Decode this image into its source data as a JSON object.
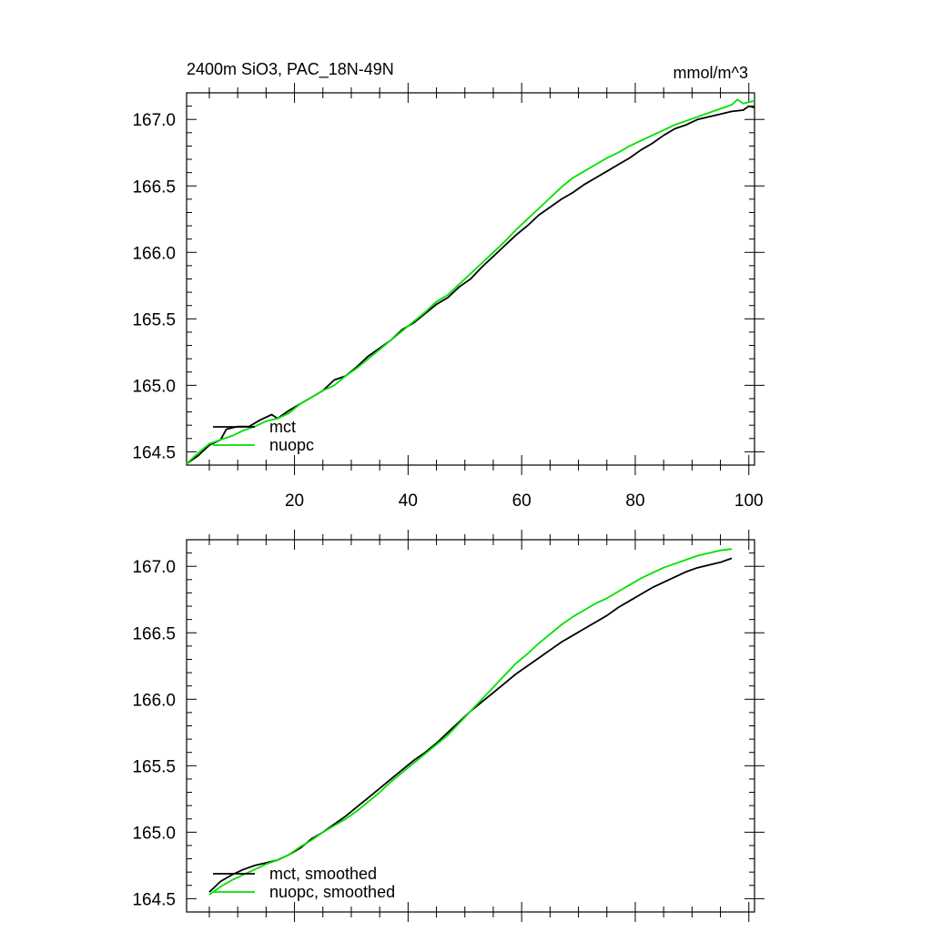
{
  "chart_data": [
    {
      "type": "line",
      "title": "2400m SiO3, PAC_18N-49N",
      "units": "mmol/m^3",
      "xlabel": "",
      "ylabel": "",
      "xlim": [
        1,
        101
      ],
      "ylim": [
        164.4,
        167.2
      ],
      "xticks": [
        20,
        40,
        60,
        80,
        100
      ],
      "xtick_labels": [
        "20",
        "40",
        "60",
        "80",
        "100"
      ],
      "yticks": [
        164.5,
        165.0,
        165.5,
        166.0,
        166.5,
        167.0
      ],
      "ytick_labels": [
        "164.5",
        "165.0",
        "165.5",
        "166.0",
        "166.5",
        "167.0"
      ],
      "grid": false,
      "legend": "bottom-left",
      "series": [
        {
          "name": "mct",
          "color": "#000000",
          "points": [
            [
              1,
              164.41
            ],
            [
              3,
              164.47
            ],
            [
              5,
              164.55
            ],
            [
              7,
              164.59
            ],
            [
              8,
              164.67
            ],
            [
              10,
              164.69
            ],
            [
              12,
              164.69
            ],
            [
              14,
              164.74
            ],
            [
              16,
              164.78
            ],
            [
              17,
              164.75
            ],
            [
              19,
              164.81
            ],
            [
              21,
              164.86
            ],
            [
              23,
              164.91
            ],
            [
              25,
              164.96
            ],
            [
              27,
              165.04
            ],
            [
              29,
              165.07
            ],
            [
              31,
              165.14
            ],
            [
              33,
              165.22
            ],
            [
              35,
              165.28
            ],
            [
              37,
              165.34
            ],
            [
              39,
              165.42
            ],
            [
              41,
              165.47
            ],
            [
              43,
              165.54
            ],
            [
              45,
              165.61
            ],
            [
              47,
              165.66
            ],
            [
              49,
              165.74
            ],
            [
              51,
              165.8
            ],
            [
              53,
              165.89
            ],
            [
              55,
              165.97
            ],
            [
              57,
              166.05
            ],
            [
              59,
              166.13
            ],
            [
              61,
              166.2
            ],
            [
              63,
              166.28
            ],
            [
              65,
              166.34
            ],
            [
              67,
              166.4
            ],
            [
              69,
              166.45
            ],
            [
              71,
              166.51
            ],
            [
              73,
              166.56
            ],
            [
              75,
              166.61
            ],
            [
              77,
              166.66
            ],
            [
              79,
              166.71
            ],
            [
              81,
              166.77
            ],
            [
              83,
              166.82
            ],
            [
              85,
              166.88
            ],
            [
              87,
              166.93
            ],
            [
              89,
              166.96
            ],
            [
              91,
              167.0
            ],
            [
              93,
              167.02
            ],
            [
              95,
              167.04
            ],
            [
              97,
              167.06
            ],
            [
              99,
              167.07
            ],
            [
              100,
              167.1
            ],
            [
              101,
              167.09
            ]
          ]
        },
        {
          "name": "nuopc",
          "color": "#00e000",
          "points": [
            [
              1,
              164.41
            ],
            [
              3,
              164.49
            ],
            [
              5,
              164.56
            ],
            [
              7,
              164.59
            ],
            [
              9,
              164.62
            ],
            [
              11,
              164.66
            ],
            [
              13,
              164.69
            ],
            [
              15,
              164.73
            ],
            [
              17,
              164.75
            ],
            [
              19,
              164.79
            ],
            [
              21,
              164.86
            ],
            [
              23,
              164.91
            ],
            [
              25,
              164.96
            ],
            [
              27,
              165.0
            ],
            [
              29,
              165.07
            ],
            [
              31,
              165.13
            ],
            [
              33,
              165.2
            ],
            [
              35,
              165.27
            ],
            [
              37,
              165.34
            ],
            [
              39,
              165.41
            ],
            [
              41,
              165.48
            ],
            [
              43,
              165.55
            ],
            [
              45,
              165.63
            ],
            [
              47,
              165.68
            ],
            [
              49,
              165.76
            ],
            [
              51,
              165.84
            ],
            [
              53,
              165.92
            ],
            [
              55,
              166.0
            ],
            [
              57,
              166.08
            ],
            [
              59,
              166.17
            ],
            [
              61,
              166.25
            ],
            [
              63,
              166.33
            ],
            [
              65,
              166.41
            ],
            [
              67,
              166.49
            ],
            [
              69,
              166.56
            ],
            [
              71,
              166.61
            ],
            [
              73,
              166.66
            ],
            [
              75,
              166.71
            ],
            [
              77,
              166.75
            ],
            [
              79,
              166.8
            ],
            [
              81,
              166.84
            ],
            [
              83,
              166.88
            ],
            [
              85,
              166.92
            ],
            [
              87,
              166.96
            ],
            [
              89,
              166.99
            ],
            [
              91,
              167.02
            ],
            [
              93,
              167.05
            ],
            [
              95,
              167.08
            ],
            [
              97,
              167.11
            ],
            [
              98,
              167.15
            ],
            [
              99,
              167.12
            ],
            [
              101,
              167.14
            ]
          ]
        }
      ]
    },
    {
      "type": "line",
      "title": "",
      "xlabel": "",
      "ylabel": "",
      "xlim": [
        1,
        101
      ],
      "ylim": [
        164.4,
        167.2
      ],
      "xticks": [
        20,
        40,
        60,
        80,
        100
      ],
      "xtick_labels": [],
      "yticks": [
        164.5,
        165.0,
        165.5,
        166.0,
        166.5,
        167.0
      ],
      "ytick_labels": [
        "164.5",
        "165.0",
        "165.5",
        "166.0",
        "166.5",
        "167.0"
      ],
      "grid": false,
      "legend": "bottom-left",
      "series": [
        {
          "name": "mct, smoothed",
          "color": "#000000",
          "points": [
            [
              5,
              164.55
            ],
            [
              7,
              164.63
            ],
            [
              9,
              164.68
            ],
            [
              11,
              164.72
            ],
            [
              13,
              164.75
            ],
            [
              15,
              164.77
            ],
            [
              17,
              164.79
            ],
            [
              19,
              164.83
            ],
            [
              21,
              164.88
            ],
            [
              23,
              164.95
            ],
            [
              25,
              165.0
            ],
            [
              27,
              165.06
            ],
            [
              29,
              165.12
            ],
            [
              31,
              165.19
            ],
            [
              33,
              165.26
            ],
            [
              35,
              165.33
            ],
            [
              37,
              165.4
            ],
            [
              39,
              165.47
            ],
            [
              41,
              165.54
            ],
            [
              43,
              165.6
            ],
            [
              45,
              165.67
            ],
            [
              47,
              165.75
            ],
            [
              49,
              165.83
            ],
            [
              51,
              165.91
            ],
            [
              53,
              165.98
            ],
            [
              55,
              166.05
            ],
            [
              57,
              166.12
            ],
            [
              59,
              166.19
            ],
            [
              61,
              166.25
            ],
            [
              63,
              166.31
            ],
            [
              65,
              166.37
            ],
            [
              67,
              166.43
            ],
            [
              69,
              166.48
            ],
            [
              71,
              166.53
            ],
            [
              73,
              166.58
            ],
            [
              75,
              166.63
            ],
            [
              77,
              166.69
            ],
            [
              79,
              166.74
            ],
            [
              81,
              166.79
            ],
            [
              83,
              166.84
            ],
            [
              85,
              166.88
            ],
            [
              87,
              166.92
            ],
            [
              89,
              166.96
            ],
            [
              91,
              166.99
            ],
            [
              93,
              167.01
            ],
            [
              95,
              167.03
            ],
            [
              97,
              167.06
            ]
          ]
        },
        {
          "name": "nuopc, smoothed",
          "color": "#00e000",
          "points": [
            [
              5,
              164.53
            ],
            [
              7,
              164.59
            ],
            [
              9,
              164.64
            ],
            [
              11,
              164.68
            ],
            [
              13,
              164.72
            ],
            [
              15,
              164.76
            ],
            [
              17,
              164.79
            ],
            [
              19,
              164.83
            ],
            [
              21,
              164.89
            ],
            [
              23,
              164.94
            ],
            [
              25,
              165.0
            ],
            [
              27,
              165.05
            ],
            [
              29,
              165.1
            ],
            [
              31,
              165.16
            ],
            [
              33,
              165.23
            ],
            [
              35,
              165.3
            ],
            [
              37,
              165.38
            ],
            [
              39,
              165.45
            ],
            [
              41,
              165.52
            ],
            [
              43,
              165.59
            ],
            [
              45,
              165.66
            ],
            [
              47,
              165.73
            ],
            [
              49,
              165.82
            ],
            [
              51,
              165.91
            ],
            [
              53,
              166.0
            ],
            [
              55,
              166.09
            ],
            [
              57,
              166.18
            ],
            [
              59,
              166.27
            ],
            [
              61,
              166.34
            ],
            [
              63,
              166.42
            ],
            [
              65,
              166.49
            ],
            [
              67,
              166.56
            ],
            [
              69,
              166.62
            ],
            [
              71,
              166.67
            ],
            [
              73,
              166.72
            ],
            [
              75,
              166.76
            ],
            [
              77,
              166.81
            ],
            [
              79,
              166.86
            ],
            [
              81,
              166.91
            ],
            [
              83,
              166.95
            ],
            [
              85,
              166.99
            ],
            [
              87,
              167.02
            ],
            [
              89,
              167.05
            ],
            [
              91,
              167.08
            ],
            [
              93,
              167.1
            ],
            [
              95,
              167.12
            ],
            [
              97,
              167.13
            ]
          ]
        }
      ]
    }
  ]
}
